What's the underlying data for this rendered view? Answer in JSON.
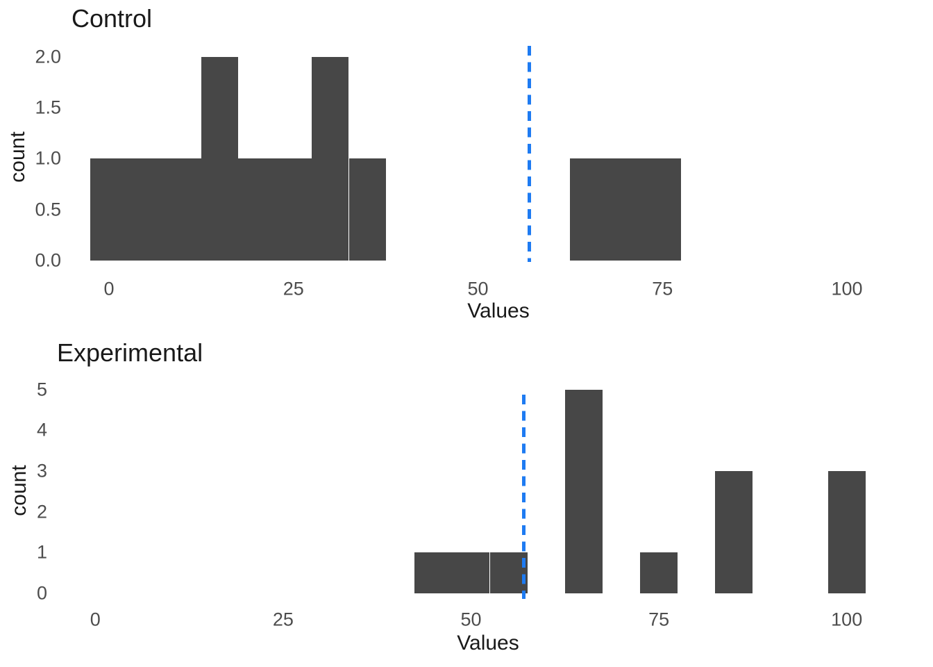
{
  "figure": {
    "background": "#ffffff"
  },
  "colors": {
    "bar": "#474747",
    "vline": "#1e7bf2",
    "tick_label": "#4d4d4d",
    "text": "#191919"
  },
  "chart_data": [
    {
      "type": "bar",
      "subtype": "histogram",
      "title": "Control",
      "xlabel": "Values",
      "ylabel": "count",
      "bar_color": "#474747",
      "bin_width": 5,
      "bins": [
        {
          "center": 0,
          "count": 1
        },
        {
          "center": 5,
          "count": 1
        },
        {
          "center": 10,
          "count": 1
        },
        {
          "center": 15,
          "count": 2
        },
        {
          "center": 20,
          "count": 1
        },
        {
          "center": 25,
          "count": 1
        },
        {
          "center": 30,
          "count": 2
        },
        {
          "center": 35,
          "count": 1
        },
        {
          "center": 65,
          "count": 1
        },
        {
          "center": 70,
          "count": 1
        },
        {
          "center": 75,
          "count": 1
        }
      ],
      "x_ticks": {
        "values": [
          0,
          25,
          50,
          75,
          100
        ],
        "labels": [
          "0",
          "25",
          "50",
          "75",
          "100"
        ]
      },
      "y_ticks": {
        "values": [
          0,
          0.5,
          1,
          1.5,
          2
        ],
        "labels": [
          "0.0",
          "0.5",
          "1.0",
          "1.5",
          "2.0"
        ]
      },
      "ylim": [
        0,
        2
      ],
      "grid": false,
      "legend": "none",
      "vline": {
        "x": 57,
        "style": "dashed",
        "color": "#1e7bf2"
      }
    },
    {
      "type": "bar",
      "subtype": "histogram",
      "title": "Experimental",
      "xlabel": "Values",
      "ylabel": "count",
      "bar_color": "#474747",
      "bin_width": 5,
      "bins": [
        {
          "center": 45,
          "count": 1
        },
        {
          "center": 50,
          "count": 1
        },
        {
          "center": 55,
          "count": 1
        },
        {
          "center": 65,
          "count": 5
        },
        {
          "center": 75,
          "count": 1
        },
        {
          "center": 85,
          "count": 3
        },
        {
          "center": 100,
          "count": 3
        }
      ],
      "x_ticks": {
        "values": [
          0,
          25,
          50,
          75,
          100
        ],
        "labels": [
          "0",
          "25",
          "50",
          "75",
          "100"
        ]
      },
      "y_ticks": {
        "values": [
          0,
          1,
          2,
          3,
          4,
          5
        ],
        "labels": [
          "0",
          "1",
          "2",
          "3",
          "4",
          "5"
        ]
      },
      "ylim": [
        0,
        5
      ],
      "grid": false,
      "legend": "none",
      "vline": {
        "x": 57,
        "style": "dashed",
        "color": "#1e7bf2"
      }
    }
  ]
}
